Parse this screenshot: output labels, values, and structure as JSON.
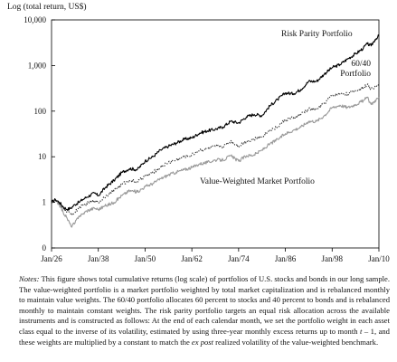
{
  "chart_data": {
    "type": "line",
    "title": "",
    "ylabel": "Log (total return, US$)",
    "xlabel": "",
    "yscale": "log",
    "ylim": [
      0,
      10000
    ],
    "y_ticks": [
      {
        "value": 0,
        "label": "0"
      },
      {
        "value": 1,
        "label": "1"
      },
      {
        "value": 10,
        "label": "10"
      },
      {
        "value": 100,
        "label": "100"
      },
      {
        "value": 1000,
        "label": "1,000"
      },
      {
        "value": 10000,
        "label": "10,000"
      }
    ],
    "xlim": [
      1926,
      2010
    ],
    "x_ticks": [
      {
        "value": 1926,
        "label": "Jan/26"
      },
      {
        "value": 1938,
        "label": "Jan/38"
      },
      {
        "value": 1950,
        "label": "Jan/50"
      },
      {
        "value": 1962,
        "label": "Jan/62"
      },
      {
        "value": 1974,
        "label": "Jan/74"
      },
      {
        "value": 1986,
        "label": "Jan/86"
      },
      {
        "value": 1998,
        "label": "Jan/98"
      },
      {
        "value": 2010,
        "label": "Jan/10"
      }
    ],
    "grid": false,
    "legend": "inline labels",
    "series": [
      {
        "name": "Risk Parity Portfolio",
        "color": "#000000",
        "style": "solid",
        "x": [
          1926,
          1927,
          1928,
          1929,
          1930,
          1931,
          1932,
          1933,
          1934,
          1935,
          1937,
          1938,
          1940,
          1942,
          1944,
          1946,
          1948,
          1950,
          1952,
          1954,
          1956,
          1958,
          1960,
          1962,
          1964,
          1966,
          1968,
          1970,
          1972,
          1974,
          1976,
          1978,
          1980,
          1982,
          1984,
          1986,
          1988,
          1990,
          1992,
          1994,
          1996,
          1998,
          2000,
          2002,
          2004,
          2006,
          2007,
          2008,
          2009,
          2010
        ],
        "y": [
          1.0,
          1.15,
          1.0,
          0.8,
          0.7,
          0.75,
          0.9,
          1.0,
          1.15,
          1.3,
          1.6,
          1.4,
          2.2,
          3.0,
          4.5,
          5.5,
          5.2,
          8.0,
          10,
          14,
          17,
          20,
          24,
          26,
          33,
          37,
          40,
          45,
          60,
          55,
          75,
          85,
          80,
          130,
          180,
          250,
          240,
          300,
          450,
          450,
          650,
          900,
          1050,
          1400,
          1800,
          2400,
          3000,
          2700,
          3700,
          4500
        ]
      },
      {
        "name": "60/40 Portfolio",
        "color": "#333333",
        "style": "dotted",
        "x": [
          1926,
          1927,
          1928,
          1929,
          1930,
          1931,
          1932,
          1933,
          1934,
          1935,
          1937,
          1938,
          1940,
          1942,
          1944,
          1946,
          1948,
          1950,
          1952,
          1954,
          1956,
          1958,
          1960,
          1962,
          1964,
          1966,
          1968,
          1970,
          1972,
          1974,
          1976,
          1978,
          1980,
          1982,
          1984,
          1986,
          1988,
          1990,
          1992,
          1994,
          1996,
          1998,
          2000,
          2002,
          2004,
          2006,
          2007,
          2008,
          2009,
          2010
        ],
        "y": [
          1.0,
          1.1,
          0.95,
          0.75,
          0.6,
          0.55,
          0.6,
          0.75,
          0.85,
          0.95,
          1.1,
          1.0,
          1.4,
          1.8,
          2.5,
          3.0,
          2.8,
          3.8,
          4.5,
          6.0,
          7.5,
          8.5,
          10,
          11,
          14,
          15,
          17,
          17,
          22,
          17,
          22,
          24,
          28,
          38,
          45,
          65,
          70,
          85,
          110,
          110,
          150,
          220,
          240,
          240,
          280,
          330,
          380,
          300,
          350,
          400
        ]
      },
      {
        "name": "Value-Weighted Market Portfolio",
        "color": "#999999",
        "style": "solid",
        "x": [
          1926,
          1927,
          1928,
          1929,
          1930,
          1931,
          1932,
          1933,
          1934,
          1935,
          1937,
          1938,
          1940,
          1942,
          1944,
          1946,
          1948,
          1950,
          1952,
          1954,
          1956,
          1958,
          1960,
          1962,
          1964,
          1966,
          1968,
          1970,
          1972,
          1974,
          1976,
          1978,
          1980,
          1982,
          1984,
          1986,
          1988,
          1990,
          1992,
          1994,
          1996,
          1998,
          2000,
          2002,
          2004,
          2006,
          2007,
          2008,
          2009,
          2010
        ],
        "y": [
          1.0,
          1.1,
          0.9,
          0.6,
          0.45,
          0.3,
          0.35,
          0.5,
          0.55,
          0.65,
          0.75,
          0.7,
          0.85,
          1.0,
          1.4,
          1.8,
          1.7,
          2.2,
          2.6,
          3.3,
          4.0,
          4.6,
          5.2,
          5.8,
          7.0,
          7.5,
          8.5,
          8.5,
          10.5,
          8.0,
          10.5,
          11,
          14,
          19,
          24,
          32,
          38,
          45,
          60,
          60,
          80,
          120,
          135,
          120,
          140,
          170,
          200,
          140,
          170,
          200
        ]
      }
    ],
    "annotations": [
      {
        "id": "risk_parity",
        "lines": [
          "Risk Parity Portfolio"
        ]
      },
      {
        "id": "sixty_forty",
        "lines": [
          "60/40",
          "Portfolio"
        ]
      },
      {
        "id": "value_weighted",
        "lines": [
          "Value-Weighted Market Portfolio"
        ]
      }
    ]
  },
  "notes": {
    "lead": "Notes:",
    "part1": " This figure shows total cumulative returns (log scale) of portfolios of U.S. stocks and bonds in our long sample. The value-weighted portfolio is a market portfolio weighted by total market capitalization and is rebalanced monthly to maintain value weights. The 60/40 portfolio allocates 60 percent to stocks and 40 percent to bonds and is rebalanced monthly to maintain constant weights. The risk parity portfolio targets an equal risk allocation across the available instruments and is constructed as follows: At the end of each calendar month, we set the portfolio weight in each asset class equal to the inverse of its volatility, estimated by using three-year monthly excess returns up to month ",
    "t_expr": "t",
    "part2": " – 1, and these weights are multiplied by a constant to match the ",
    "ex_post": "ex post",
    "part3": " realized volatility of the value-weighted benchmark."
  }
}
